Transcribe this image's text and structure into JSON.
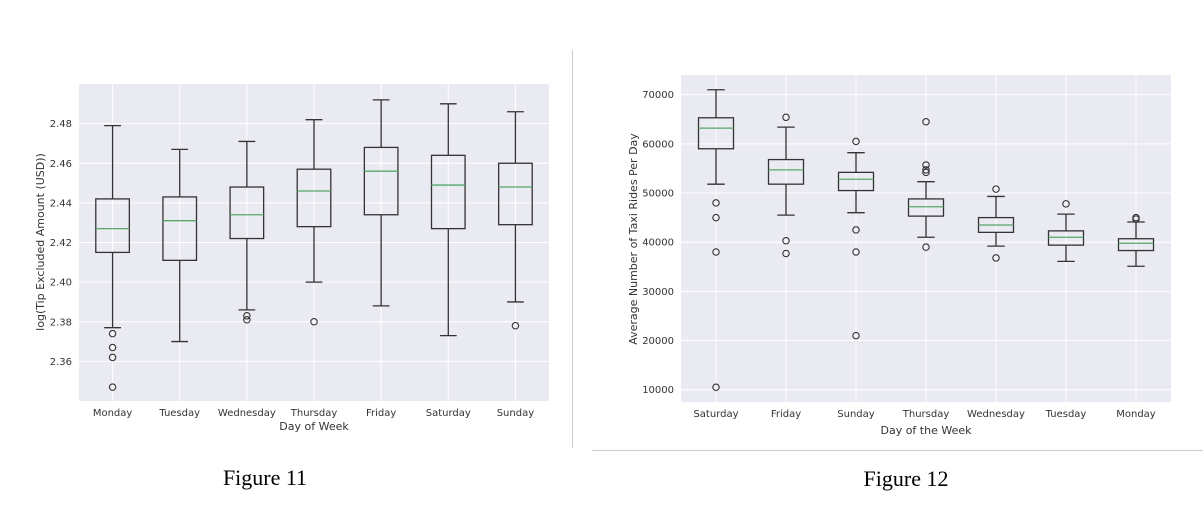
{
  "chart_data": [
    {
      "type": "box",
      "caption": "Figure 11",
      "xlabel": "Day of Week",
      "ylabel": "log(Tip Excluded Amount (USD))",
      "ylim": [
        2.34,
        2.5
      ],
      "yticks": [
        "2.36",
        "2.38",
        "2.40",
        "2.42",
        "2.44",
        "2.46",
        "2.48"
      ],
      "grid": true,
      "colors": {
        "background": "#eaeaf2",
        "box": "#333333",
        "median": "#55a868"
      },
      "categories": [
        "Monday",
        "Tuesday",
        "Wednesday",
        "Thursday",
        "Friday",
        "Saturday",
        "Sunday"
      ],
      "boxes": [
        {
          "whislo": 2.377,
          "q1": 2.415,
          "med": 2.427,
          "q3": 2.442,
          "whishi": 2.479,
          "fliers": [
            2.374,
            2.367,
            2.362,
            2.347
          ]
        },
        {
          "whislo": 2.37,
          "q1": 2.411,
          "med": 2.431,
          "q3": 2.443,
          "whishi": 2.467,
          "fliers": []
        },
        {
          "whislo": 2.386,
          "q1": 2.422,
          "med": 2.434,
          "q3": 2.448,
          "whishi": 2.471,
          "fliers": [
            2.383,
            2.381
          ]
        },
        {
          "whislo": 2.4,
          "q1": 2.428,
          "med": 2.446,
          "q3": 2.457,
          "whishi": 2.482,
          "fliers": [
            2.38
          ]
        },
        {
          "whislo": 2.388,
          "q1": 2.434,
          "med": 2.456,
          "q3": 2.468,
          "whishi": 2.492,
          "fliers": []
        },
        {
          "whislo": 2.373,
          "q1": 2.427,
          "med": 2.449,
          "q3": 2.464,
          "whishi": 2.49,
          "fliers": []
        },
        {
          "whislo": 2.39,
          "q1": 2.429,
          "med": 2.448,
          "q3": 2.46,
          "whishi": 2.486,
          "fliers": [
            2.378
          ]
        }
      ]
    },
    {
      "type": "box",
      "caption": "Figure 12",
      "xlabel": "Day of the Week",
      "ylabel": "Average Number of Taxi Rides Per Day",
      "ylim": [
        7500,
        74000
      ],
      "yticks": [
        "10000",
        "20000",
        "30000",
        "40000",
        "50000",
        "60000",
        "70000"
      ],
      "grid": true,
      "colors": {
        "background": "#eaeaf2",
        "box": "#333333",
        "median": "#55a868"
      },
      "categories": [
        "Saturday",
        "Friday",
        "Sunday",
        "Thursday",
        "Wednesday",
        "Tuesday",
        "Monday"
      ],
      "boxes": [
        {
          "whislo": 51800,
          "q1": 59000,
          "med": 63200,
          "q3": 65300,
          "whishi": 71000,
          "fliers": [
            48000,
            45000,
            38000,
            10500
          ]
        },
        {
          "whislo": 45500,
          "q1": 51800,
          "med": 54700,
          "q3": 56800,
          "whishi": 63400,
          "fliers": [
            65400,
            40300,
            37700
          ]
        },
        {
          "whislo": 46000,
          "q1": 50500,
          "med": 52800,
          "q3": 54200,
          "whishi": 58200,
          "fliers": [
            60500,
            42500,
            38000,
            21000
          ]
        },
        {
          "whislo": 41000,
          "q1": 45300,
          "med": 47200,
          "q3": 48800,
          "whishi": 52300,
          "fliers": [
            64500,
            55700,
            54700,
            54200,
            39000
          ]
        },
        {
          "whislo": 39200,
          "q1": 42000,
          "med": 43500,
          "q3": 45000,
          "whishi": 49300,
          "fliers": [
            50800,
            36800
          ]
        },
        {
          "whislo": 36100,
          "q1": 39400,
          "med": 41000,
          "q3": 42300,
          "whishi": 45700,
          "fliers": [
            47800
          ]
        },
        {
          "whislo": 35100,
          "q1": 38300,
          "med": 39800,
          "q3": 40700,
          "whishi": 44100,
          "fliers": [
            45000,
            44700
          ]
        }
      ]
    }
  ]
}
